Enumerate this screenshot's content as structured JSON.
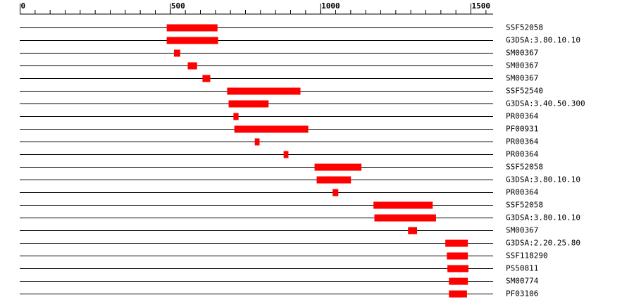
{
  "chart_data": {
    "type": "range",
    "xlim": [
      0,
      1575
    ],
    "xticks": [
      0,
      500,
      1000,
      1500
    ],
    "xminorticks": [
      0,
      50,
      100,
      150,
      200,
      250,
      300,
      350,
      400,
      450,
      500,
      550,
      600,
      650,
      700,
      750,
      800,
      850,
      900,
      950,
      1000,
      1050,
      1100,
      1150,
      1200,
      1250,
      1300,
      1350,
      1400,
      1450,
      1500,
      1550
    ],
    "color": "#ff0000",
    "rows": [
      {
        "label": "SSF52058",
        "start": 489,
        "end": 658
      },
      {
        "label": "G3DSA:3.80.10.10",
        "start": 489,
        "end": 660
      },
      {
        "label": "SM00367",
        "start": 513,
        "end": 534
      },
      {
        "label": "SM00367",
        "start": 559,
        "end": 590
      },
      {
        "label": "SM00367",
        "start": 608,
        "end": 634
      },
      {
        "label": "SSF52540",
        "start": 690,
        "end": 934
      },
      {
        "label": "G3DSA:3.40.50.300",
        "start": 695,
        "end": 828
      },
      {
        "label": "PR00364",
        "start": 711,
        "end": 728
      },
      {
        "label": "PF00931",
        "start": 714,
        "end": 960
      },
      {
        "label": "PR00364",
        "start": 782,
        "end": 798
      },
      {
        "label": "PR00364",
        "start": 878,
        "end": 894
      },
      {
        "label": "SSF52058",
        "start": 981,
        "end": 1137
      },
      {
        "label": "G3DSA:3.80.10.10",
        "start": 988,
        "end": 1102
      },
      {
        "label": "PR00364",
        "start": 1041,
        "end": 1060
      },
      {
        "label": "SSF52058",
        "start": 1177,
        "end": 1374
      },
      {
        "label": "G3DSA:3.80.10.10",
        "start": 1180,
        "end": 1385
      },
      {
        "label": "SM00367",
        "start": 1292,
        "end": 1322
      },
      {
        "label": "G3DSA:2.20.25.80",
        "start": 1416,
        "end": 1491
      },
      {
        "label": "SSF118290",
        "start": 1421,
        "end": 1491
      },
      {
        "label": "PS50811",
        "start": 1423,
        "end": 1493
      },
      {
        "label": "SM00774",
        "start": 1428,
        "end": 1491
      },
      {
        "label": "PF03106",
        "start": 1428,
        "end": 1488
      }
    ]
  }
}
